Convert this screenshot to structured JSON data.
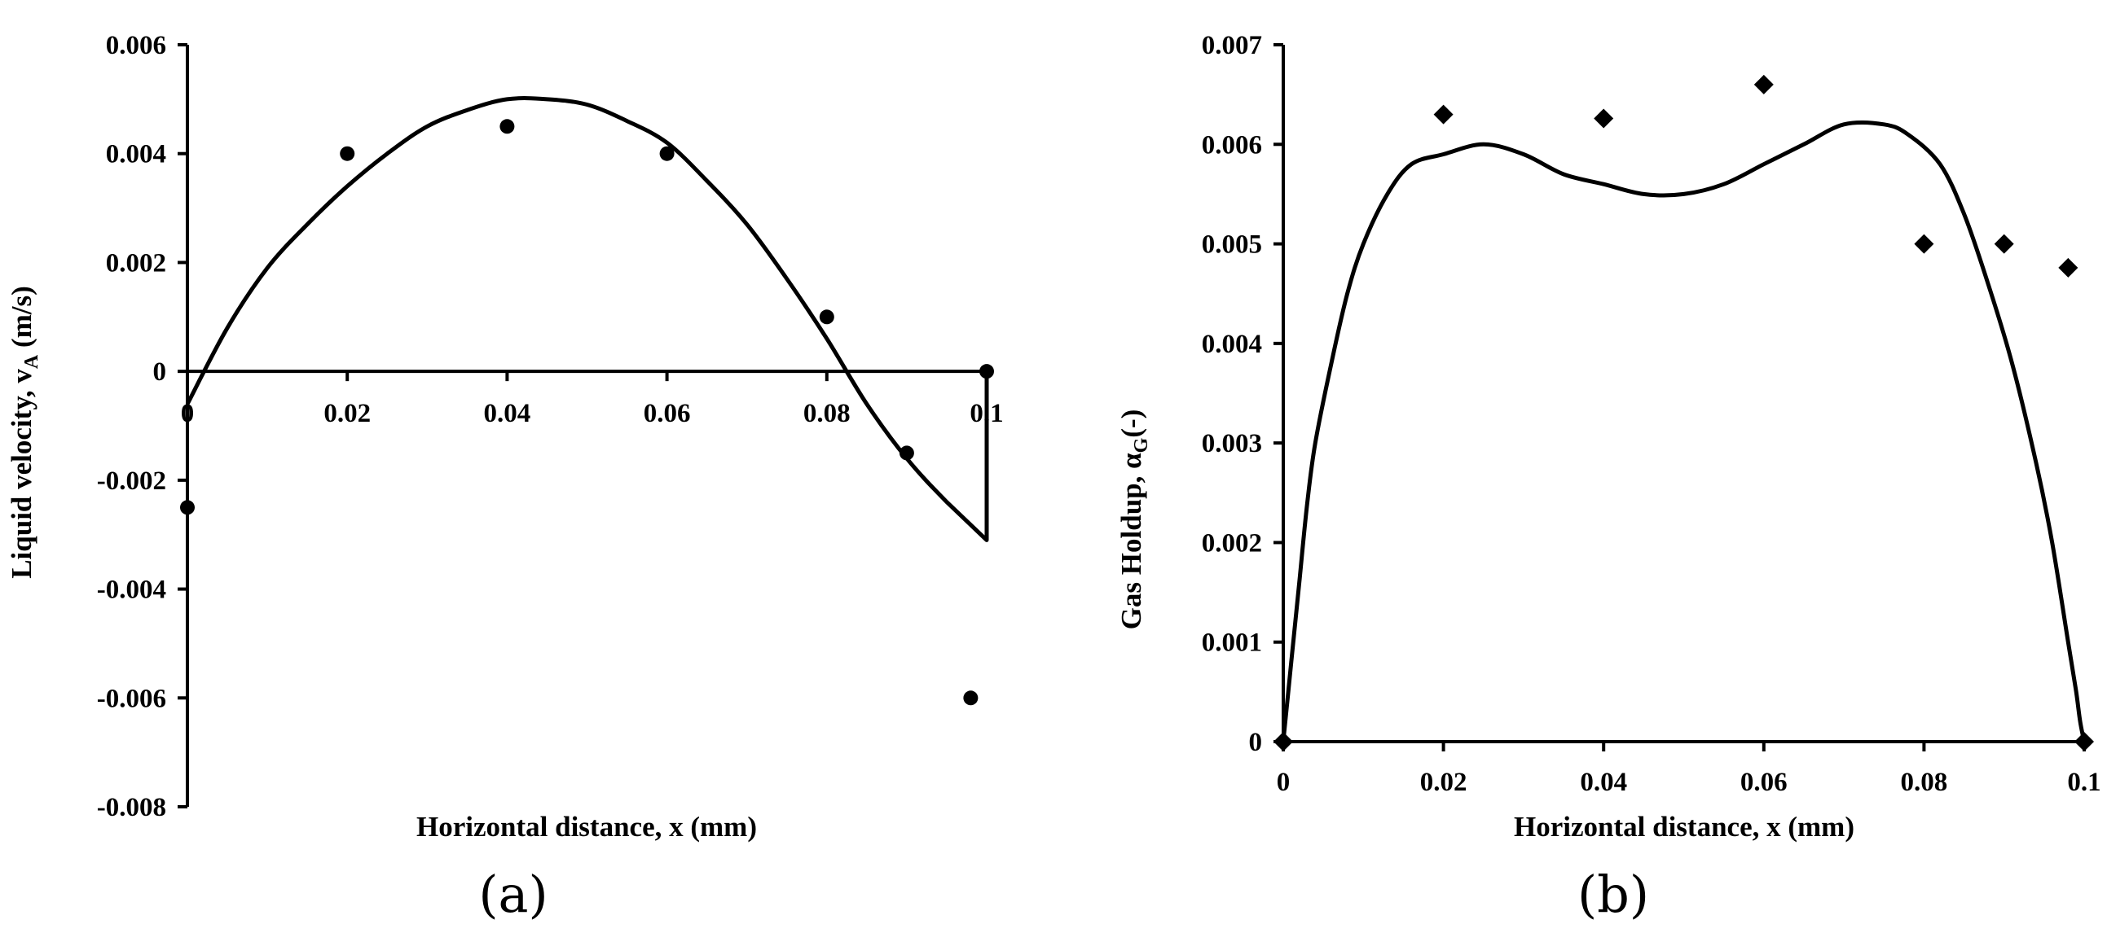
{
  "panels": {
    "a": {
      "label": "(a)"
    },
    "b": {
      "label": "(b)"
    }
  },
  "chart_data": [
    {
      "type": "scatter",
      "title": "",
      "xlabel": "Horizontal distance, x (mm)",
      "ylabel": "Liquid  velocity, v",
      "ylabel_sub": "A",
      "ylabel_unit": " (m/s)",
      "xlim": [
        0,
        0.1
      ],
      "ylim": [
        -0.008,
        0.006
      ],
      "x_ticks": [
        "0",
        "0.02",
        "0.04",
        "0.06",
        "0.08",
        "0.1"
      ],
      "y_ticks": [
        "0.006",
        "0.004",
        "0.002",
        "0",
        "-0.002",
        "-0.004",
        "-0.006",
        "-0.008"
      ],
      "grid": false,
      "series": [
        {
          "kind": "points",
          "marker": "circle",
          "x": [
            0,
            0.02,
            0.04,
            0.06,
            0.08,
            0.09,
            0.098,
            0.1
          ],
          "y": [
            -0.0025,
            0.004,
            0.0045,
            0.004,
            0.001,
            -0.0015,
            -0.006,
            0
          ]
        },
        {
          "kind": "line",
          "x": [
            0,
            0.005,
            0.01,
            0.015,
            0.02,
            0.025,
            0.03,
            0.035,
            0.04,
            0.045,
            0.05,
            0.055,
            0.06,
            0.065,
            0.07,
            0.075,
            0.08,
            0.085,
            0.09,
            0.095,
            0.1,
            0.1,
            0.1
          ],
          "y": [
            -0.0006,
            0.0008,
            0.0019,
            0.0027,
            0.0034,
            0.004,
            0.0045,
            0.0048,
            0.005,
            0.005,
            0.0049,
            0.0046,
            0.0042,
            0.0035,
            0.0027,
            0.0017,
            0.0006,
            -0.0006,
            -0.0016,
            -0.0024,
            -0.0031,
            -0.0031,
            0
          ]
        }
      ]
    },
    {
      "type": "scatter",
      "title": "",
      "xlabel": "Horizontal distance, x (mm)",
      "ylabel": "Gas Holdup,  α",
      "ylabel_sub": "G",
      "ylabel_unit": "(-)",
      "xlim": [
        0,
        0.1
      ],
      "ylim": [
        0,
        0.007
      ],
      "x_ticks": [
        "0",
        "0.02",
        "0.04",
        "0.06",
        "0.08",
        "0.1"
      ],
      "y_ticks": [
        "0.007",
        "0.006",
        "0.005",
        "0.004",
        "0.003",
        "0.002",
        "0.001",
        "0"
      ],
      "grid": false,
      "series": [
        {
          "kind": "points",
          "marker": "diamond",
          "x": [
            0,
            0.02,
            0.04,
            0.06,
            0.08,
            0.09,
            0.098,
            0.1
          ],
          "y": [
            0,
            0.0063,
            0.00626,
            0.0066,
            0.005,
            0.005,
            0.00476,
            0
          ]
        },
        {
          "kind": "line",
          "x": [
            0,
            0.001,
            0.002,
            0.003,
            0.004,
            0.006,
            0.008,
            0.01,
            0.013,
            0.016,
            0.02,
            0.025,
            0.03,
            0.035,
            0.04,
            0.045,
            0.05,
            0.055,
            0.06,
            0.065,
            0.07,
            0.075,
            0.078,
            0.082,
            0.085,
            0.088,
            0.091,
            0.094,
            0.096,
            0.098,
            0.099,
            0.0995,
            0.1
          ],
          "y": [
            0,
            0.0008,
            0.0016,
            0.0024,
            0.003,
            0.0038,
            0.0045,
            0.005,
            0.0055,
            0.0058,
            0.0059,
            0.006,
            0.0059,
            0.0057,
            0.0056,
            0.0055,
            0.0055,
            0.0056,
            0.0058,
            0.006,
            0.0062,
            0.0062,
            0.0061,
            0.0058,
            0.0053,
            0.0046,
            0.0038,
            0.0028,
            0.002,
            0.001,
            0.0005,
            0.0002,
            0
          ]
        }
      ]
    }
  ]
}
